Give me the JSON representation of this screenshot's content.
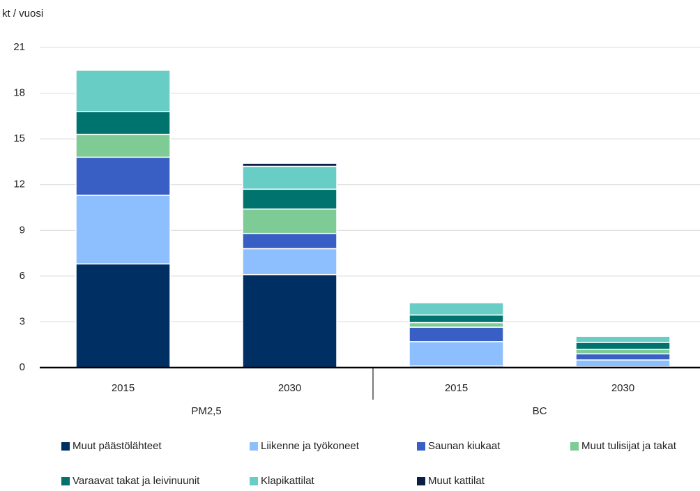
{
  "chart_data": {
    "type": "stacked_bar",
    "y_label": "kt / vuosi",
    "categories": [
      "2015",
      "2030",
      "2015",
      "2030"
    ],
    "group_labels": [
      "PM2,5",
      "BC"
    ],
    "ylim": [
      0,
      21
    ],
    "yticks": [
      0,
      3,
      6,
      9,
      12,
      15,
      18,
      21
    ],
    "grid": true,
    "series": [
      {
        "name": "Muut päästölähteet",
        "color": "#003063",
        "values": [
          6.8,
          6.1,
          0.1,
          0.05
        ]
      },
      {
        "name": "Liikenne ja työkoneet",
        "color": "#8dbfff",
        "values": [
          4.5,
          1.7,
          1.6,
          0.45
        ]
      },
      {
        "name": "Saunan kiukaat",
        "color": "#3a5fc4",
        "values": [
          2.5,
          1.0,
          0.95,
          0.4
        ]
      },
      {
        "name": "Muut tulisijat ja takat",
        "color": "#7ecb96",
        "values": [
          1.5,
          1.6,
          0.3,
          0.3
        ]
      },
      {
        "name": "Varaavat takat ja leivinuunit",
        "color": "#00736e",
        "values": [
          1.5,
          1.3,
          0.5,
          0.45
        ]
      },
      {
        "name": "Klapikattilat",
        "color": "#68cdc4",
        "values": [
          2.7,
          1.5,
          0.8,
          0.4
        ]
      },
      {
        "name": "Muut kattilat",
        "color": "#0b1f45",
        "values": [
          0,
          0.2,
          0,
          0
        ]
      }
    ]
  }
}
